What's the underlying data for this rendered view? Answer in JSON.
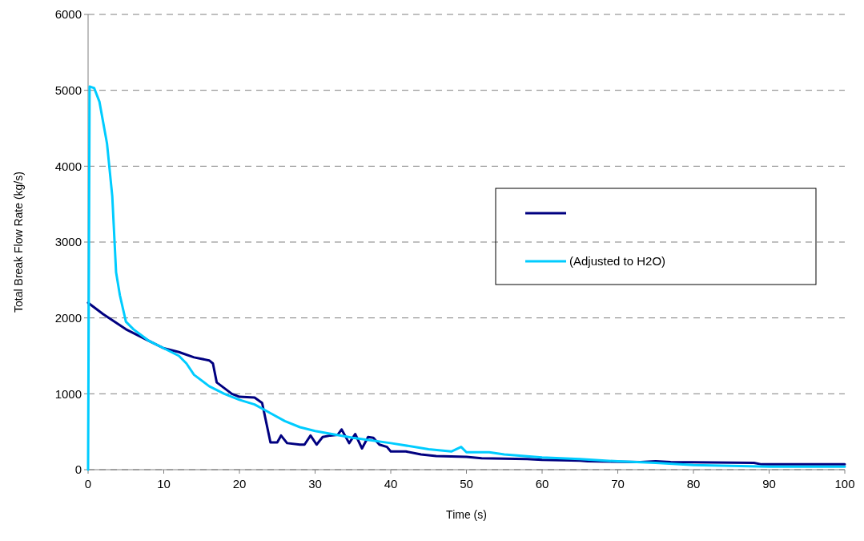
{
  "chart_data": {
    "type": "line",
    "xlabel": "Time (s)",
    "ylabel": "Total Break Flow Rate (kg/s)",
    "xlim": [
      0,
      100
    ],
    "xticks": [
      0,
      10,
      20,
      30,
      40,
      50,
      60,
      70,
      80,
      90,
      100
    ],
    "ylim": [
      0,
      6000
    ],
    "yticks": [
      0,
      1000,
      2000,
      3000,
      4000,
      5000,
      6000
    ],
    "grid": "y",
    "legend": "right",
    "line_style": "solid",
    "marker": "none",
    "series": [
      {
        "color": "#000080",
        "x": [
          0,
          2,
          5,
          8,
          10,
          12,
          14,
          16,
          16.5,
          17,
          19,
          20,
          22,
          23,
          24.1,
          25,
          25.5,
          26.3,
          28,
          28.6,
          29.4,
          30.2,
          31,
          32,
          33,
          33.5,
          34.5,
          35.3,
          36.2,
          37,
          37.7,
          38.5,
          39.5,
          40,
          42,
          44,
          46,
          50,
          52,
          58,
          60,
          65,
          66,
          73,
          75,
          77,
          88,
          89,
          100
        ],
        "values": [
          2200,
          2050,
          1850,
          1700,
          1600,
          1550,
          1480,
          1440,
          1400,
          1150,
          1000,
          960,
          950,
          880,
          360,
          360,
          450,
          350,
          330,
          330,
          450,
          330,
          430,
          450,
          460,
          530,
          350,
          470,
          280,
          430,
          420,
          330,
          300,
          240,
          240,
          200,
          180,
          170,
          150,
          140,
          130,
          120,
          110,
          100,
          110,
          100,
          90,
          70,
          70
        ]
      },
      {
        "name": "(Adjusted to H2O)",
        "color": "#00ccff",
        "x": [
          0,
          0.2,
          0.8,
          1.5,
          2.5,
          3.2,
          3.7,
          4.2,
          5,
          6,
          8,
          10,
          12,
          13,
          14,
          16,
          18,
          20,
          22,
          24,
          26,
          28,
          30,
          35,
          40,
          45,
          48,
          49.3,
          50,
          53,
          55,
          60,
          65,
          70,
          75,
          80,
          90,
          100
        ],
        "values": [
          0,
          5050,
          5030,
          4850,
          4300,
          3600,
          2600,
          2300,
          1950,
          1850,
          1700,
          1600,
          1500,
          1400,
          1250,
          1100,
          1000,
          920,
          860,
          750,
          640,
          560,
          510,
          420,
          350,
          270,
          240,
          300,
          230,
          230,
          200,
          160,
          140,
          110,
          90,
          60,
          40,
          40
        ]
      }
    ]
  }
}
